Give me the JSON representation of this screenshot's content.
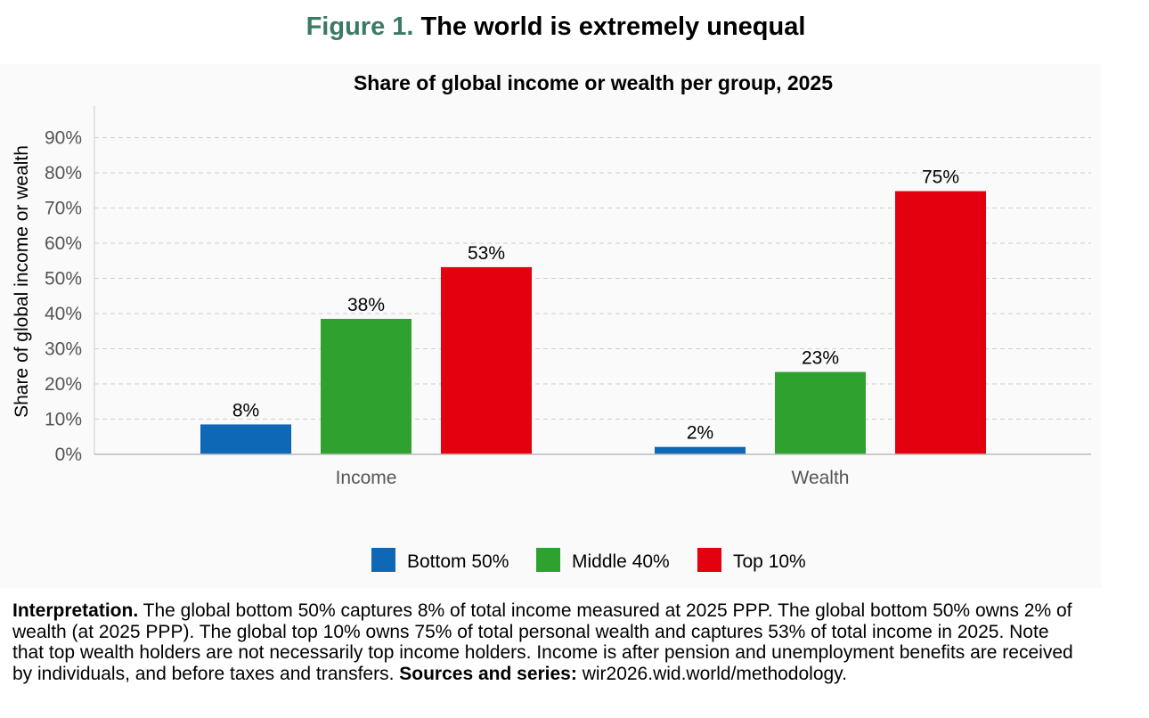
{
  "figure": {
    "number": "Figure 1.",
    "title": "The world is extremely unequal"
  },
  "chart_data": {
    "type": "bar",
    "title": "Share of global income or wealth per group, 2025",
    "xlabel": "",
    "ylabel": "Share of global income or wealth",
    "categories": [
      "Income",
      "Wealth"
    ],
    "series": [
      {
        "name": "Bottom 50%",
        "color": "#0f68b5",
        "values": [
          8.5,
          2.1
        ],
        "labels": [
          "8%",
          "2%"
        ]
      },
      {
        "name": "Middle 40%",
        "color": "#2ea12e",
        "values": [
          38.5,
          23.4
        ],
        "labels": [
          "38%",
          "23%"
        ]
      },
      {
        "name": "Top 10%",
        "color": "#e3000f",
        "values": [
          53.2,
          74.8
        ],
        "labels": [
          "53%",
          "75%"
        ]
      }
    ],
    "ylim": [
      0,
      99
    ],
    "yticks": [
      0,
      10,
      20,
      30,
      40,
      50,
      60,
      70,
      80,
      90
    ],
    "ytick_labels": [
      "0%",
      "10%",
      "20%",
      "30%",
      "40%",
      "50%",
      "60%",
      "70%",
      "80%",
      "90%"
    ],
    "grid": true,
    "legend_position": "bottom-center"
  },
  "note": {
    "interpretation_label": "Interpretation.",
    "interpretation_text": " The global bottom 50% captures 8% of total income measured at 2025 PPP. The global bottom 50% owns 2% of wealth (at 2025 PPP). The global top 10% owns 75% of total personal wealth and captures 53% of total income in 2025. Note that top wealth holders are not necessarily top income holders. Income is after pension and unemployment benefits are received by individuals, and before taxes and transfers. ",
    "sources_label": "Sources and series:",
    "sources_text": " wir2026.wid.world/methodology."
  }
}
